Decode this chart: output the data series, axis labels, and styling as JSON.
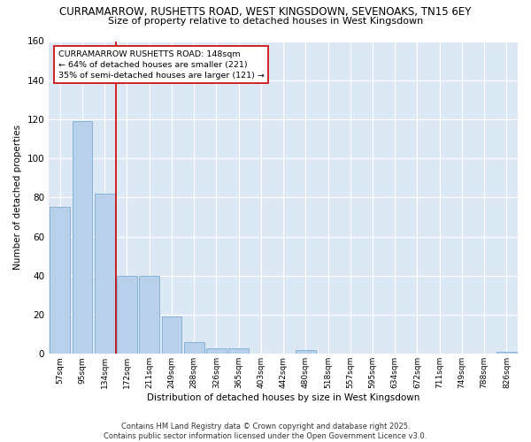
{
  "title_line1": "CURRAMARROW, RUSHETTS ROAD, WEST KINGSDOWN, SEVENOAKS, TN15 6EY",
  "title_line2": "Size of property relative to detached houses in West Kingsdown",
  "xlabel": "Distribution of detached houses by size in West Kingsdown",
  "ylabel": "Number of detached properties",
  "categories": [
    "57sqm",
    "95sqm",
    "134sqm",
    "172sqm",
    "211sqm",
    "249sqm",
    "288sqm",
    "326sqm",
    "365sqm",
    "403sqm",
    "442sqm",
    "480sqm",
    "518sqm",
    "557sqm",
    "595sqm",
    "634sqm",
    "672sqm",
    "711sqm",
    "749sqm",
    "788sqm",
    "826sqm"
  ],
  "values": [
    75,
    119,
    82,
    40,
    40,
    19,
    6,
    3,
    3,
    0,
    0,
    2,
    0,
    0,
    0,
    0,
    0,
    0,
    0,
    0,
    1
  ],
  "bar_color": "#b8d0ea",
  "bar_edge_color": "#7aadd4",
  "red_line_x": 2.5,
  "red_line_color": "#cc0000",
  "annotation_text": "CURRAMARROW RUSHETTS ROAD: 148sqm\n← 64% of detached houses are smaller (221)\n35% of semi-detached houses are larger (121) →",
  "annotation_box_color": "#ffffff",
  "annotation_box_edge": "#cc0000",
  "ylim": [
    0,
    160
  ],
  "yticks": [
    0,
    20,
    40,
    60,
    80,
    100,
    120,
    140,
    160
  ],
  "fig_bg_color": "#ffffff",
  "plot_bg_color": "#dde8f5",
  "grid_color": "#ffffff",
  "footer_line1": "Contains HM Land Registry data © Crown copyright and database right 2025.",
  "footer_line2": "Contains public sector information licensed under the Open Government Licence v3.0."
}
